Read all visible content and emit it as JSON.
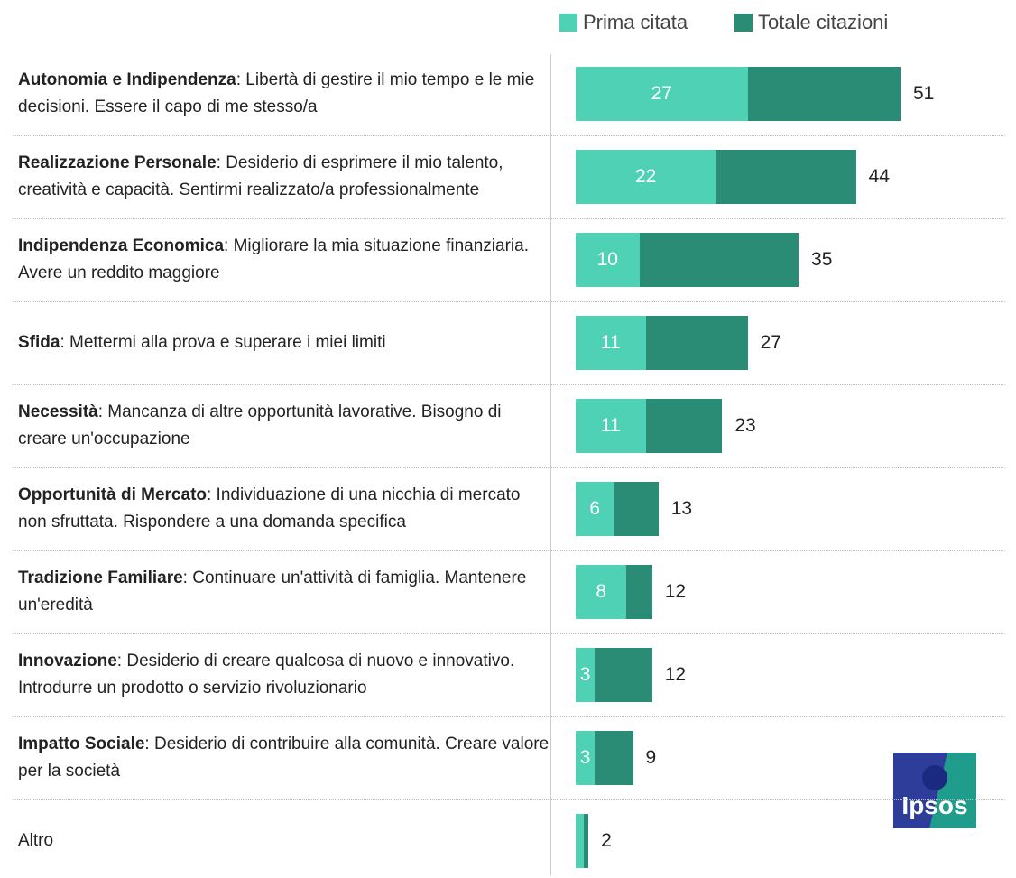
{
  "logo": "Ipsos",
  "chart_data": {
    "type": "bar",
    "orientation": "horizontal",
    "overlap": true,
    "category_titles": [
      "Autonomia e Indipendenza",
      "Realizzazione Personale",
      "Indipendenza Economica",
      "Sfida",
      "Necessità",
      "Opportunità di Mercato",
      "Tradizione Familiare",
      "Innovazione",
      "Impatto Sociale",
      null
    ],
    "category_descriptions": [
      ": Libertà di gestire il mio tempo e le mie decisioni. Essere il capo di me stesso/a",
      ": Desiderio di esprimere il mio talento, creatività e capacità. Sentirmi realizzato/a professionalmente",
      ": Migliorare la mia situazione finanziaria. Avere un reddito maggiore",
      ": Mettermi alla prova e superare i miei limiti",
      ": Mancanza di altre opportunità lavorative. Bisogno di creare un'occupazione",
      ": Individuazione di una nicchia di mercato non sfruttata. Rispondere a una domanda specifica",
      ": Continuare un'attività di famiglia. Mantenere un'eredità",
      ": Desiderio di creare qualcosa di nuovo e innovativo. Introdurre un prodotto o servizio rivoluzionario",
      ": Desiderio di contribuire alla comunità. Creare valore per la società",
      "Altro"
    ],
    "series": [
      {
        "name": "Prima citata",
        "color": "#4fd1b6",
        "values": [
          27,
          22,
          10,
          11,
          11,
          6,
          8,
          3,
          3,
          1.3
        ],
        "value_labels": [
          "27",
          "22",
          "10",
          "11",
          "11",
          "6",
          "8",
          "3",
          "3",
          null
        ]
      },
      {
        "name": "Totale citazioni",
        "color": "#2a8c74",
        "values": [
          51,
          44,
          35,
          27,
          23,
          13,
          12,
          12,
          9,
          2
        ]
      }
    ]
  }
}
